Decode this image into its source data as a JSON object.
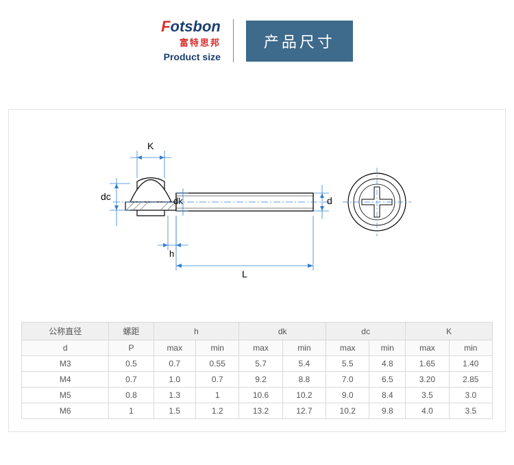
{
  "header": {
    "logo_en_top_red": "F",
    "logo_en_top_blue": "otsbon",
    "logo_cn": "富特思邦",
    "logo_sub": "Product size",
    "title_cn": "产品尺寸"
  },
  "diagram": {
    "labels": {
      "K": "K",
      "dc": "dc",
      "dk": "dk",
      "d": "d",
      "h": "h",
      "L": "L"
    },
    "colors": {
      "outline": "#000000",
      "dimension": "#2f7fd1",
      "hatch": "#9aa0a6"
    }
  },
  "table": {
    "header_groups": [
      {
        "label_top": "公称直径",
        "label_bottom": "d",
        "span": 1,
        "sub": null
      },
      {
        "label_top": "螺距",
        "label_bottom": "P",
        "span": 1,
        "sub": null
      },
      {
        "label_top": "h",
        "label_bottom": null,
        "span": 2,
        "sub": [
          "max",
          "min"
        ]
      },
      {
        "label_top": "dk",
        "label_bottom": null,
        "span": 2,
        "sub": [
          "max",
          "min"
        ]
      },
      {
        "label_top": "dc",
        "label_bottom": null,
        "span": 2,
        "sub": [
          "max",
          "min"
        ]
      },
      {
        "label_top": "K",
        "label_bottom": null,
        "span": 2,
        "sub": [
          "max",
          "min"
        ]
      }
    ],
    "rows": [
      [
        "M3",
        "0.5",
        "0.7",
        "0.55",
        "5.7",
        "5.4",
        "5.5",
        "4.8",
        "1.65",
        "1.40"
      ],
      [
        "M4",
        "0.7",
        "1.0",
        "0.7",
        "9.2",
        "8.8",
        "7.0",
        "6.5",
        "3.20",
        "2.85"
      ],
      [
        "M5",
        "0.8",
        "1.3",
        "1",
        "10.6",
        "10.2",
        "9.0",
        "8.4",
        "3.5",
        "3.0"
      ],
      [
        "M6",
        "1",
        "1.5",
        "1.2",
        "13.2",
        "12.7",
        "10.2",
        "9.8",
        "4.0",
        "3.5"
      ]
    ]
  }
}
